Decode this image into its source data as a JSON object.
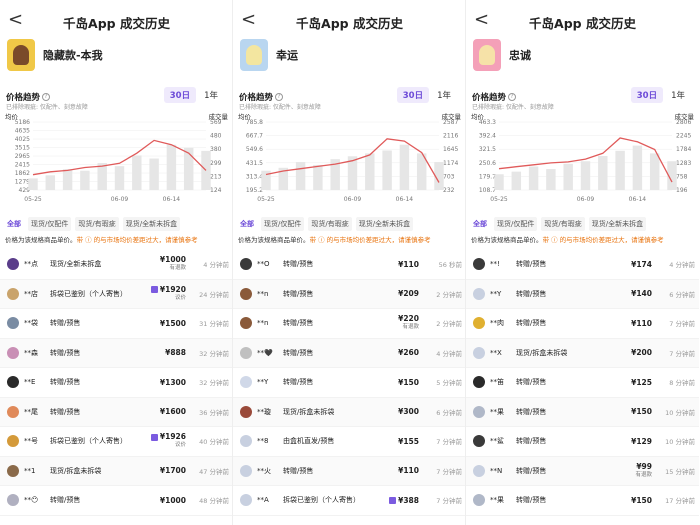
{
  "panels": [
    {
      "title": "千岛App 成交历史",
      "back": "<",
      "product": "隐藏款-本我",
      "thumb": {
        "bg": "#f0c847",
        "fg": "#7a4a2a"
      },
      "trend_label": "价格趋势",
      "periods": [
        "30日",
        "1年"
      ],
      "note": "已排除瑕疵: 仅配件、刻意故障",
      "filters": [
        "全部",
        "现货/仅配件",
        "现货/有瑕疵",
        "现货/全新未拆盒"
      ],
      "legend": {
        "prefix": "价格为该规格商品单价。",
        "warn": "带 ⓘ 的与市场均价差距过大，请谨慎参考"
      },
      "rows": [
        {
          "user": "**点",
          "avatar": "#5a3d8a",
          "cond": "现货/全新未拆盒",
          "price": "¥1000",
          "sub": "有退款",
          "badge": false,
          "time": "4 分钟前"
        },
        {
          "user": "**店",
          "avatar": "#c9a36b",
          "cond": "拆袋已鉴别（个人寄售）",
          "price": "¥1920",
          "sub": "议价",
          "badge": true,
          "time": "24 分钟前"
        },
        {
          "user": "**袋",
          "avatar": "#7a8ca3",
          "cond": "转赠/预售",
          "price": "¥1500",
          "sub": "",
          "badge": false,
          "time": "31 分钟前"
        },
        {
          "user": "**森",
          "avatar": "#c98fb5",
          "cond": "转赠/预售",
          "price": "¥888",
          "sub": "",
          "badge": false,
          "time": "32 分钟前"
        },
        {
          "user": "**E",
          "avatar": "#2a2a2a",
          "cond": "转赠/预售",
          "price": "¥1300",
          "sub": "",
          "badge": false,
          "time": "32 分钟前"
        },
        {
          "user": "**尾",
          "avatar": "#e08a5a",
          "cond": "转赠/预售",
          "price": "¥1600",
          "sub": "",
          "badge": false,
          "time": "36 分钟前"
        },
        {
          "user": "**号",
          "avatar": "#d49a3a",
          "cond": "拆袋已鉴别（个人寄售）",
          "price": "¥1926",
          "sub": "议价",
          "badge": true,
          "time": "40 分钟前"
        },
        {
          "user": "**1",
          "avatar": "#8a6a4a",
          "cond": "现货/拆盒未拆袋",
          "price": "¥1700",
          "sub": "",
          "badge": false,
          "time": "47 分钟前"
        },
        {
          "user": "**😶",
          "avatar": "#b0b0c0",
          "cond": "转赠/预售",
          "price": "¥1000",
          "sub": "",
          "badge": false,
          "time": "48 分钟前"
        }
      ]
    },
    {
      "title": "千岛App 成交历史",
      "back": "<",
      "product": "幸运",
      "thumb": {
        "bg": "#b9d6f0",
        "fg": "#f3e6a0"
      },
      "trend_label": "价格趋势",
      "periods": [
        "30日",
        "1年"
      ],
      "note": "已排除瑕疵: 仅配件、刻意故障",
      "filters": [
        "全部",
        "现货/仅配件",
        "现货/有瑕疵",
        "现货/全新未拆盒"
      ],
      "legend": {
        "prefix": "价格为该规格商品单价。",
        "warn": "带 ⓘ 的与市场均价差距过大，请谨慎参考"
      },
      "rows": [
        {
          "user": "**O",
          "avatar": "#3a3a3a",
          "cond": "转赠/预售",
          "price": "¥110",
          "sub": "",
          "badge": false,
          "time": "56 秒前"
        },
        {
          "user": "**n",
          "avatar": "#8a5a3a",
          "cond": "转赠/预售",
          "price": "¥209",
          "sub": "",
          "badge": false,
          "time": "2 分钟前"
        },
        {
          "user": "**n",
          "avatar": "#8a5a3a",
          "cond": "转赠/预售",
          "price": "¥220",
          "sub": "有退款",
          "badge": false,
          "time": "2 分钟前"
        },
        {
          "user": "**🖤",
          "avatar": "#c0c0c0",
          "cond": "转赠/预售",
          "price": "¥260",
          "sub": "",
          "badge": false,
          "time": "4 分钟前"
        },
        {
          "user": "**Y",
          "avatar": "#d0d8e8",
          "cond": "转赠/预售",
          "price": "¥150",
          "sub": "",
          "badge": false,
          "time": "5 分钟前"
        },
        {
          "user": "**璇",
          "avatar": "#9a4a3a",
          "cond": "现货/拆盒未拆袋",
          "price": "¥300",
          "sub": "",
          "badge": false,
          "time": "6 分钟前"
        },
        {
          "user": "**8",
          "avatar": "#c8d0e0",
          "cond": "由盒机直发/预售",
          "price": "¥155",
          "sub": "",
          "badge": false,
          "time": "7 分钟前"
        },
        {
          "user": "**火",
          "avatar": "#c8d0e0",
          "cond": "转赠/预售",
          "price": "¥110",
          "sub": "",
          "badge": false,
          "time": "7 分钟前"
        },
        {
          "user": "**A",
          "avatar": "#c8d0e0",
          "cond": "拆袋已鉴别（个人寄售）",
          "price": "¥388",
          "sub": "",
          "badge": true,
          "time": "7 分钟前"
        }
      ]
    },
    {
      "title": "千岛App 成交历史",
      "back": "<",
      "product": "忠诚",
      "thumb": {
        "bg": "#f4a0b8",
        "fg": "#f6e2a8"
      },
      "trend_label": "价格趋势",
      "periods": [
        "30日",
        "1年"
      ],
      "note": "已排除瑕疵: 仅配件、刻意故障",
      "filters": [
        "全部",
        "现货/仅配件",
        "现货/有瑕疵",
        "现货/全新未拆盒"
      ],
      "legend": {
        "prefix": "价格为该规格商品单价。",
        "warn": "带 ⓘ 的与市场均价差距过大，请谨慎参考"
      },
      "rows": [
        {
          "user": "**!",
          "avatar": "#3a3a3a",
          "cond": "转赠/预售",
          "price": "¥174",
          "sub": "",
          "badge": false,
          "time": "4 分钟前"
        },
        {
          "user": "**Y",
          "avatar": "#c8d0e0",
          "cond": "转赠/预售",
          "price": "¥140",
          "sub": "",
          "badge": false,
          "time": "6 分钟前"
        },
        {
          "user": "**肉",
          "avatar": "#e0b030",
          "cond": "转赠/预售",
          "price": "¥110",
          "sub": "",
          "badge": false,
          "time": "7 分钟前"
        },
        {
          "user": "**X",
          "avatar": "#c8d0e0",
          "cond": "现货/拆盒未拆袋",
          "price": "¥200",
          "sub": "",
          "badge": false,
          "time": "7 分钟前"
        },
        {
          "user": "**笛",
          "avatar": "#2a2a2a",
          "cond": "转赠/预售",
          "price": "¥125",
          "sub": "",
          "badge": false,
          "time": "8 分钟前"
        },
        {
          "user": "**果",
          "avatar": "#b0b8c8",
          "cond": "转赠/预售",
          "price": "¥150",
          "sub": "",
          "badge": false,
          "time": "10 分钟前"
        },
        {
          "user": "**鲨",
          "avatar": "#3a3a3a",
          "cond": "转赠/预售",
          "price": "¥129",
          "sub": "",
          "badge": false,
          "time": "10 分钟前"
        },
        {
          "user": "**N",
          "avatar": "#c8d0e0",
          "cond": "转赠/预售",
          "price": "¥99",
          "sub": "有退款",
          "badge": false,
          "time": "15 分钟前"
        },
        {
          "user": "**果",
          "avatar": "#b0b8c8",
          "cond": "转赠/预售",
          "price": "¥150",
          "sub": "",
          "badge": false,
          "time": "17 分钟前"
        }
      ]
    }
  ],
  "chart_data": [
    {
      "type": "line",
      "ylabel": "均价",
      "y2label": "成交量",
      "yticks": [
        "5186",
        "4635",
        "4025",
        "3515",
        "2965",
        "2415",
        "1862",
        "1279",
        "429"
      ],
      "y2ticks": [
        "569",
        "480",
        "380",
        "299",
        "213",
        "124"
      ],
      "xticks": [
        "05-25",
        "06-09",
        "06-14"
      ],
      "x": [
        "05-25",
        "05-28",
        "05-31",
        "06-03",
        "06-06",
        "06-09",
        "06-11",
        "06-13",
        "06-14",
        "06-16",
        "06-18"
      ],
      "price": [
        1500,
        1700,
        1800,
        2000,
        2100,
        2300,
        3000,
        3900,
        3600,
        3000,
        1800
      ],
      "volume": [
        200,
        220,
        260,
        250,
        300,
        280,
        350,
        330,
        420,
        400,
        380
      ],
      "ylim": [
        429,
        5186
      ],
      "y2lim": [
        124,
        569
      ]
    },
    {
      "type": "line",
      "ylabel": "均价",
      "y2label": "成交量",
      "yticks": [
        "785.8",
        "667.7",
        "549.6",
        "431.5",
        "313.4",
        "195.2"
      ],
      "y2ticks": [
        "2587",
        "2116",
        "1645",
        "1174",
        "703",
        "232"
      ],
      "xticks": [
        "05-25",
        "06-09",
        "06-14"
      ],
      "x": [
        "05-25",
        "05-28",
        "05-31",
        "06-03",
        "06-06",
        "06-09",
        "06-11",
        "06-13",
        "06-14",
        "06-16",
        "06-18"
      ],
      "price": [
        330,
        360,
        380,
        400,
        420,
        450,
        500,
        640,
        620,
        520,
        260
      ],
      "volume": [
        900,
        1000,
        1200,
        1100,
        1300,
        1400,
        1500,
        1600,
        1800,
        1500,
        1200
      ],
      "ylim": [
        195.2,
        785.8
      ],
      "y2lim": [
        232,
        2587
      ]
    },
    {
      "type": "line",
      "ylabel": "均价",
      "y2label": "成交量",
      "yticks": [
        "463.3",
        "392.4",
        "321.5",
        "250.6",
        "179.7",
        "108.7"
      ],
      "y2ticks": [
        "2806",
        "2245",
        "1784",
        "1283",
        "758",
        "196"
      ],
      "xticks": [
        "05-25",
        "06-09",
        "06-14"
      ],
      "x": [
        "05-25",
        "05-28",
        "05-31",
        "06-03",
        "06-06",
        "06-09",
        "06-11",
        "06-13",
        "06-14",
        "06-16",
        "06-18"
      ],
      "price": [
        220,
        230,
        240,
        250,
        255,
        270,
        300,
        380,
        360,
        320,
        150
      ],
      "volume": [
        800,
        900,
        1100,
        1000,
        1200,
        1300,
        1500,
        1700,
        1900,
        1600,
        1300
      ],
      "ylim": [
        108.7,
        463.3
      ],
      "y2lim": [
        196,
        2806
      ]
    }
  ]
}
